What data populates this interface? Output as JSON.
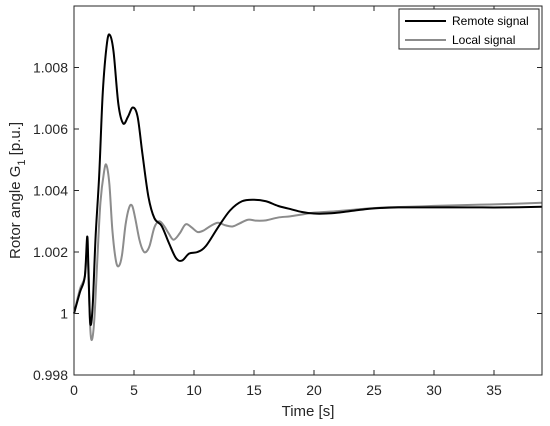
{
  "chart_data": {
    "type": "line",
    "xlabel": "Time [s]",
    "ylabel_main": "Rotor angle G",
    "ylabel_sub": "1",
    "ylabel_unit": " [p.u.]",
    "xlim": [
      0,
      39
    ],
    "ylim": [
      0.998,
      1.01
    ],
    "x_ticks": [
      0,
      5,
      10,
      15,
      20,
      25,
      30,
      35
    ],
    "x_tick_labels": [
      "0",
      "5",
      "10",
      "15",
      "20",
      "25",
      "30",
      "35"
    ],
    "y_ticks": [
      0.998,
      1.0,
      1.002,
      1.004,
      1.006,
      1.008
    ],
    "y_tick_labels": [
      "0.998",
      "1",
      "1.002",
      "1.004",
      "1.006",
      "1.008"
    ],
    "grid": false,
    "legend_position": "top-right",
    "series": [
      {
        "name": "Remote signal",
        "color": "#000000",
        "points": [
          [
            0,
            1.0
          ],
          [
            0.5,
            1.0007
          ],
          [
            0.9,
            1.0012
          ],
          [
            1.1,
            1.0025
          ],
          [
            1.2,
            1.0015
          ],
          [
            1.35,
            0.9997
          ],
          [
            1.55,
            1.0002
          ],
          [
            1.8,
            1.0025
          ],
          [
            2.1,
            1.0045
          ],
          [
            2.4,
            1.0072
          ],
          [
            2.75,
            1.0088
          ],
          [
            3.0,
            1.00905
          ],
          [
            3.3,
            1.0085
          ],
          [
            3.7,
            1.0068
          ],
          [
            4.1,
            1.00618
          ],
          [
            4.5,
            1.0064
          ],
          [
            4.9,
            1.0067
          ],
          [
            5.3,
            1.0064
          ],
          [
            5.7,
            1.0052
          ],
          [
            6.2,
            1.0038
          ],
          [
            6.7,
            1.0031
          ],
          [
            7.3,
            1.00285
          ],
          [
            7.9,
            1.0023
          ],
          [
            8.5,
            1.0018
          ],
          [
            9.0,
            1.00172
          ],
          [
            9.6,
            1.00195
          ],
          [
            10.3,
            1.002
          ],
          [
            11.0,
            1.0022
          ],
          [
            12.0,
            1.0028
          ],
          [
            13.0,
            1.00335
          ],
          [
            14.0,
            1.00365
          ],
          [
            15.0,
            1.0037
          ],
          [
            16.0,
            1.00365
          ],
          [
            17.0,
            1.0035
          ],
          [
            18.0,
            1.0034
          ],
          [
            19.0,
            1.0033
          ],
          [
            20.0,
            1.00325
          ],
          [
            21.0,
            1.00325
          ],
          [
            22.0,
            1.00328
          ],
          [
            23.0,
            1.00333
          ],
          [
            24.0,
            1.00338
          ],
          [
            25.0,
            1.00342
          ],
          [
            27.0,
            1.00345
          ],
          [
            30.0,
            1.00345
          ],
          [
            33.0,
            1.00345
          ],
          [
            36.0,
            1.00345
          ],
          [
            39.0,
            1.00347
          ]
        ]
      },
      {
        "name": "Local signal",
        "color": "#8c8c8c",
        "points": [
          [
            0,
            1.0
          ],
          [
            0.5,
            1.0008
          ],
          [
            0.9,
            1.0012
          ],
          [
            1.1,
            1.0022
          ],
          [
            1.2,
            1.0013
          ],
          [
            1.35,
            0.99955
          ],
          [
            1.5,
            0.99915
          ],
          [
            1.7,
            0.99985
          ],
          [
            1.95,
            1.0018
          ],
          [
            2.2,
            1.0036
          ],
          [
            2.5,
            1.0046
          ],
          [
            2.7,
            1.00483
          ],
          [
            2.95,
            1.0042
          ],
          [
            3.2,
            1.0027
          ],
          [
            3.5,
            1.0017
          ],
          [
            3.75,
            1.00155
          ],
          [
            4.0,
            1.0019
          ],
          [
            4.3,
            1.0029
          ],
          [
            4.6,
            1.00345
          ],
          [
            4.85,
            1.0035
          ],
          [
            5.1,
            1.0031
          ],
          [
            5.45,
            1.0024
          ],
          [
            5.75,
            1.00205
          ],
          [
            6.0,
            1.002
          ],
          [
            6.3,
            1.0022
          ],
          [
            6.7,
            1.0028
          ],
          [
            7.1,
            1.003
          ],
          [
            7.5,
            1.00285
          ],
          [
            7.9,
            1.0026
          ],
          [
            8.3,
            1.0024
          ],
          [
            8.8,
            1.0026
          ],
          [
            9.3,
            1.0029
          ],
          [
            9.8,
            1.0028
          ],
          [
            10.3,
            1.00265
          ],
          [
            10.8,
            1.0027
          ],
          [
            11.4,
            1.00285
          ],
          [
            12.0,
            1.00295
          ],
          [
            12.6,
            1.00287
          ],
          [
            13.2,
            1.00283
          ],
          [
            13.8,
            1.00293
          ],
          [
            14.5,
            1.00305
          ],
          [
            15.2,
            1.00302
          ],
          [
            16.0,
            1.00303
          ],
          [
            17.0,
            1.00312
          ],
          [
            18.0,
            1.00316
          ],
          [
            19.0,
            1.00322
          ],
          [
            20.0,
            1.00328
          ],
          [
            22.0,
            1.00333
          ],
          [
            24.0,
            1.0034
          ],
          [
            26.0,
            1.00345
          ],
          [
            28.0,
            1.00347
          ],
          [
            30.0,
            1.0035
          ],
          [
            32.0,
            1.00352
          ],
          [
            34.0,
            1.00354
          ],
          [
            36.0,
            1.00356
          ],
          [
            39.0,
            1.0036
          ]
        ]
      }
    ]
  }
}
